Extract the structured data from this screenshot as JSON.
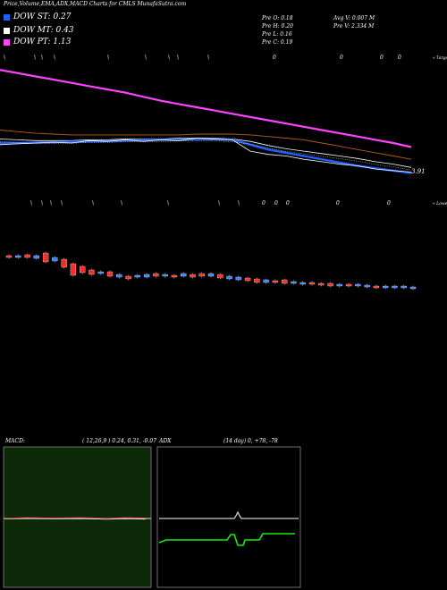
{
  "title": "Price,Volume,EMA,ADX,MACD Charts for CMLS MunafaSutra.com",
  "legend": [
    {
      "label": "DOW ST: 0.27",
      "color": "#1e5fff"
    },
    {
      "label": "DOW MT: 0.43",
      "color": "#ffffff"
    },
    {
      "label": "DOW PT: 1.13",
      "color": "#ff44ff"
    }
  ],
  "stats_left": [
    "Pre   O: 0.18",
    "Pre   H: 0.20",
    "Pre   L: 0.16",
    "Pre   C: 0.19"
  ],
  "stats_right": [
    "Avg V: 0.007 M",
    "Pre   V: 2.334   M"
  ],
  "colors": {
    "background": "#000000",
    "bull": "#3a7bff",
    "bear": "#ff2a2a",
    "ema_short": "#1e5fff",
    "ema_mid": "#ffffff",
    "ema_long": "#ff44ff",
    "ema_brown": "#b0601e",
    "macd_bg": "#0c2a08",
    "adx_line": "#10ee10"
  },
  "chart_data": [
    {
      "type": "line",
      "name": "price-ema",
      "right_label_top": "« Target",
      "price_label": "3.91",
      "x": [
        0,
        20,
        40,
        60,
        80,
        100,
        120,
        140,
        160,
        180,
        200,
        220,
        240,
        260,
        280,
        300,
        320,
        340,
        360,
        380,
        400,
        420,
        440,
        460
      ],
      "series": [
        {
          "values": [
            10.2,
            10.0,
            9.8,
            9.6,
            9.4,
            9.2,
            9.0,
            8.8,
            8.55,
            8.3,
            8.1,
            7.9,
            7.7,
            7.5,
            7.3,
            7.1,
            6.9,
            6.7,
            6.5,
            6.3,
            6.1,
            5.9,
            5.7,
            5.45
          ],
          "color": "#ff44ff"
        },
        {
          "values": [
            6.5,
            6.4,
            6.3,
            6.25,
            6.2,
            6.2,
            6.2,
            6.2,
            6.2,
            6.2,
            6.2,
            6.25,
            6.25,
            6.25,
            6.2,
            6.1,
            6.0,
            5.9,
            5.7,
            5.5,
            5.3,
            5.1,
            4.9,
            4.7
          ],
          "color": "#b0601e"
        },
        {
          "values": [
            5.95,
            5.9,
            5.85,
            5.85,
            5.85,
            5.9,
            5.9,
            5.95,
            5.95,
            5.95,
            6.0,
            6.0,
            6.0,
            5.95,
            5.8,
            5.55,
            5.35,
            5.2,
            5.05,
            4.9,
            4.75,
            4.55,
            4.4,
            4.2
          ],
          "color": "#ffffff"
        },
        {
          "values": [
            5.7,
            5.7,
            5.72,
            5.75,
            5.78,
            5.8,
            5.82,
            5.85,
            5.88,
            5.9,
            5.9,
            5.93,
            5.93,
            5.9,
            5.6,
            5.3,
            5.1,
            4.9,
            4.7,
            4.5,
            4.3,
            4.15,
            4.0,
            3.85
          ],
          "color": "#1e5fff"
        },
        {
          "values": [
            5.6,
            5.65,
            5.7,
            5.75,
            5.7,
            5.85,
            5.8,
            5.9,
            5.8,
            5.9,
            5.85,
            6.0,
            5.95,
            5.9,
            5.2,
            5.0,
            4.9,
            4.7,
            4.55,
            4.4,
            4.3,
            4.1,
            4.0,
            3.91
          ],
          "color": "#ffffff"
        }
      ],
      "marker_rows": [
        {
          "y": 66,
          "items": [
            [
              4,
              "\\"
            ],
            [
              38,
              "\\"
            ],
            [
              46,
              "\\"
            ],
            [
              60,
              "\\"
            ],
            [
              120,
              "\\"
            ],
            [
              162,
              "\\"
            ],
            [
              188,
              "\\"
            ],
            [
              198,
              "\\"
            ],
            [
              232,
              "\\"
            ],
            [
              305,
              "0"
            ],
            [
              380,
              "0"
            ],
            [
              425,
              "0"
            ],
            [
              445,
              "0"
            ]
          ]
        }
      ]
    },
    {
      "type": "bar",
      "name": "volume-candles",
      "right_label_top": "« Lowest",
      "marker_rows": [
        {
          "y": 229,
          "items": [
            [
              34,
              "\\"
            ],
            [
              46,
              "\\"
            ],
            [
              56,
              "\\"
            ],
            [
              68,
              "\\"
            ],
            [
              103,
              "\\"
            ],
            [
              135,
              "\\"
            ],
            [
              187,
              "\\"
            ],
            [
              244,
              "\\"
            ],
            [
              266,
              "\\"
            ],
            [
              293,
              "0"
            ],
            [
              307,
              "0"
            ],
            [
              320,
              "0"
            ],
            [
              376,
              "0"
            ],
            [
              433,
              "0"
            ]
          ]
        }
      ],
      "candles": [
        {
          "o": 286,
          "c": 288,
          "c_type": "bear"
        },
        {
          "o": 286,
          "c": 288,
          "c_type": "bull"
        },
        {
          "o": 285,
          "c": 288,
          "c_type": "bear"
        },
        {
          "o": 286,
          "c": 289,
          "c_type": "bull"
        },
        {
          "o": 283,
          "c": 293,
          "c_type": "bear"
        },
        {
          "o": 288,
          "c": 292,
          "c_type": "bull"
        },
        {
          "o": 290,
          "c": 299,
          "c_type": "bear"
        },
        {
          "o": 295,
          "c": 308,
          "c_type": "bear"
        },
        {
          "o": 298,
          "c": 305,
          "c_type": "bear"
        },
        {
          "o": 302,
          "c": 307,
          "c_type": "bear"
        },
        {
          "o": 304,
          "c": 306,
          "c_type": "bull"
        },
        {
          "o": 304,
          "c": 309,
          "c_type": "bear"
        },
        {
          "o": 307,
          "c": 310,
          "c_type": "bull"
        },
        {
          "o": 309,
          "c": 312,
          "c_type": "bear"
        },
        {
          "o": 308,
          "c": 310,
          "c_type": "bull"
        },
        {
          "o": 307,
          "c": 310,
          "c_type": "bull"
        },
        {
          "o": 306,
          "c": 309,
          "c_type": "bear"
        },
        {
          "o": 307,
          "c": 309,
          "c_type": "bull"
        },
        {
          "o": 308,
          "c": 310,
          "c_type": "bear"
        },
        {
          "o": 306,
          "c": 309,
          "c_type": "bull"
        },
        {
          "o": 307,
          "c": 310,
          "c_type": "bear"
        },
        {
          "o": 306,
          "c": 309,
          "c_type": "bear"
        },
        {
          "o": 306,
          "c": 309,
          "c_type": "bull"
        },
        {
          "o": 307,
          "c": 311,
          "c_type": "bear"
        },
        {
          "o": 309,
          "c": 312,
          "c_type": "bull"
        },
        {
          "o": 310,
          "c": 313,
          "c_type": "bull"
        },
        {
          "o": 311,
          "c": 314,
          "c_type": "bear"
        },
        {
          "o": 312,
          "c": 316,
          "c_type": "bear"
        },
        {
          "o": 313,
          "c": 316,
          "c_type": "bull"
        },
        {
          "o": 314,
          "c": 316,
          "c_type": "bear"
        },
        {
          "o": 313,
          "c": 317,
          "c_type": "bear"
        },
        {
          "o": 315,
          "c": 317,
          "c_type": "bull"
        },
        {
          "o": 316,
          "c": 318,
          "c_type": "bull"
        },
        {
          "o": 316,
          "c": 318,
          "c_type": "bear"
        },
        {
          "o": 317,
          "c": 319,
          "c_type": "bear"
        },
        {
          "o": 317,
          "c": 320,
          "c_type": "bear"
        },
        {
          "o": 318,
          "c": 320,
          "c_type": "bull"
        },
        {
          "o": 318,
          "c": 320,
          "c_type": "bear"
        },
        {
          "o": 318,
          "c": 320,
          "c_type": "bull"
        },
        {
          "o": 319,
          "c": 321,
          "c_type": "bull"
        },
        {
          "o": 320,
          "c": 322,
          "c_type": "bear"
        },
        {
          "o": 320,
          "c": 322,
          "c_type": "bull"
        },
        {
          "o": 320,
          "c": 322,
          "c_type": "bull"
        },
        {
          "o": 320,
          "c": 322,
          "c_type": "bull"
        },
        {
          "o": 321,
          "c": 323,
          "c_type": "bull"
        }
      ]
    },
    {
      "type": "line",
      "name": "macd",
      "title": "MACD:",
      "params": "( 12,26,9 ) 0.24, 0.31, -0.07"
    },
    {
      "type": "line",
      "name": "adx",
      "title": "ADX",
      "params": "(14  day) 0, +78, -78"
    }
  ]
}
